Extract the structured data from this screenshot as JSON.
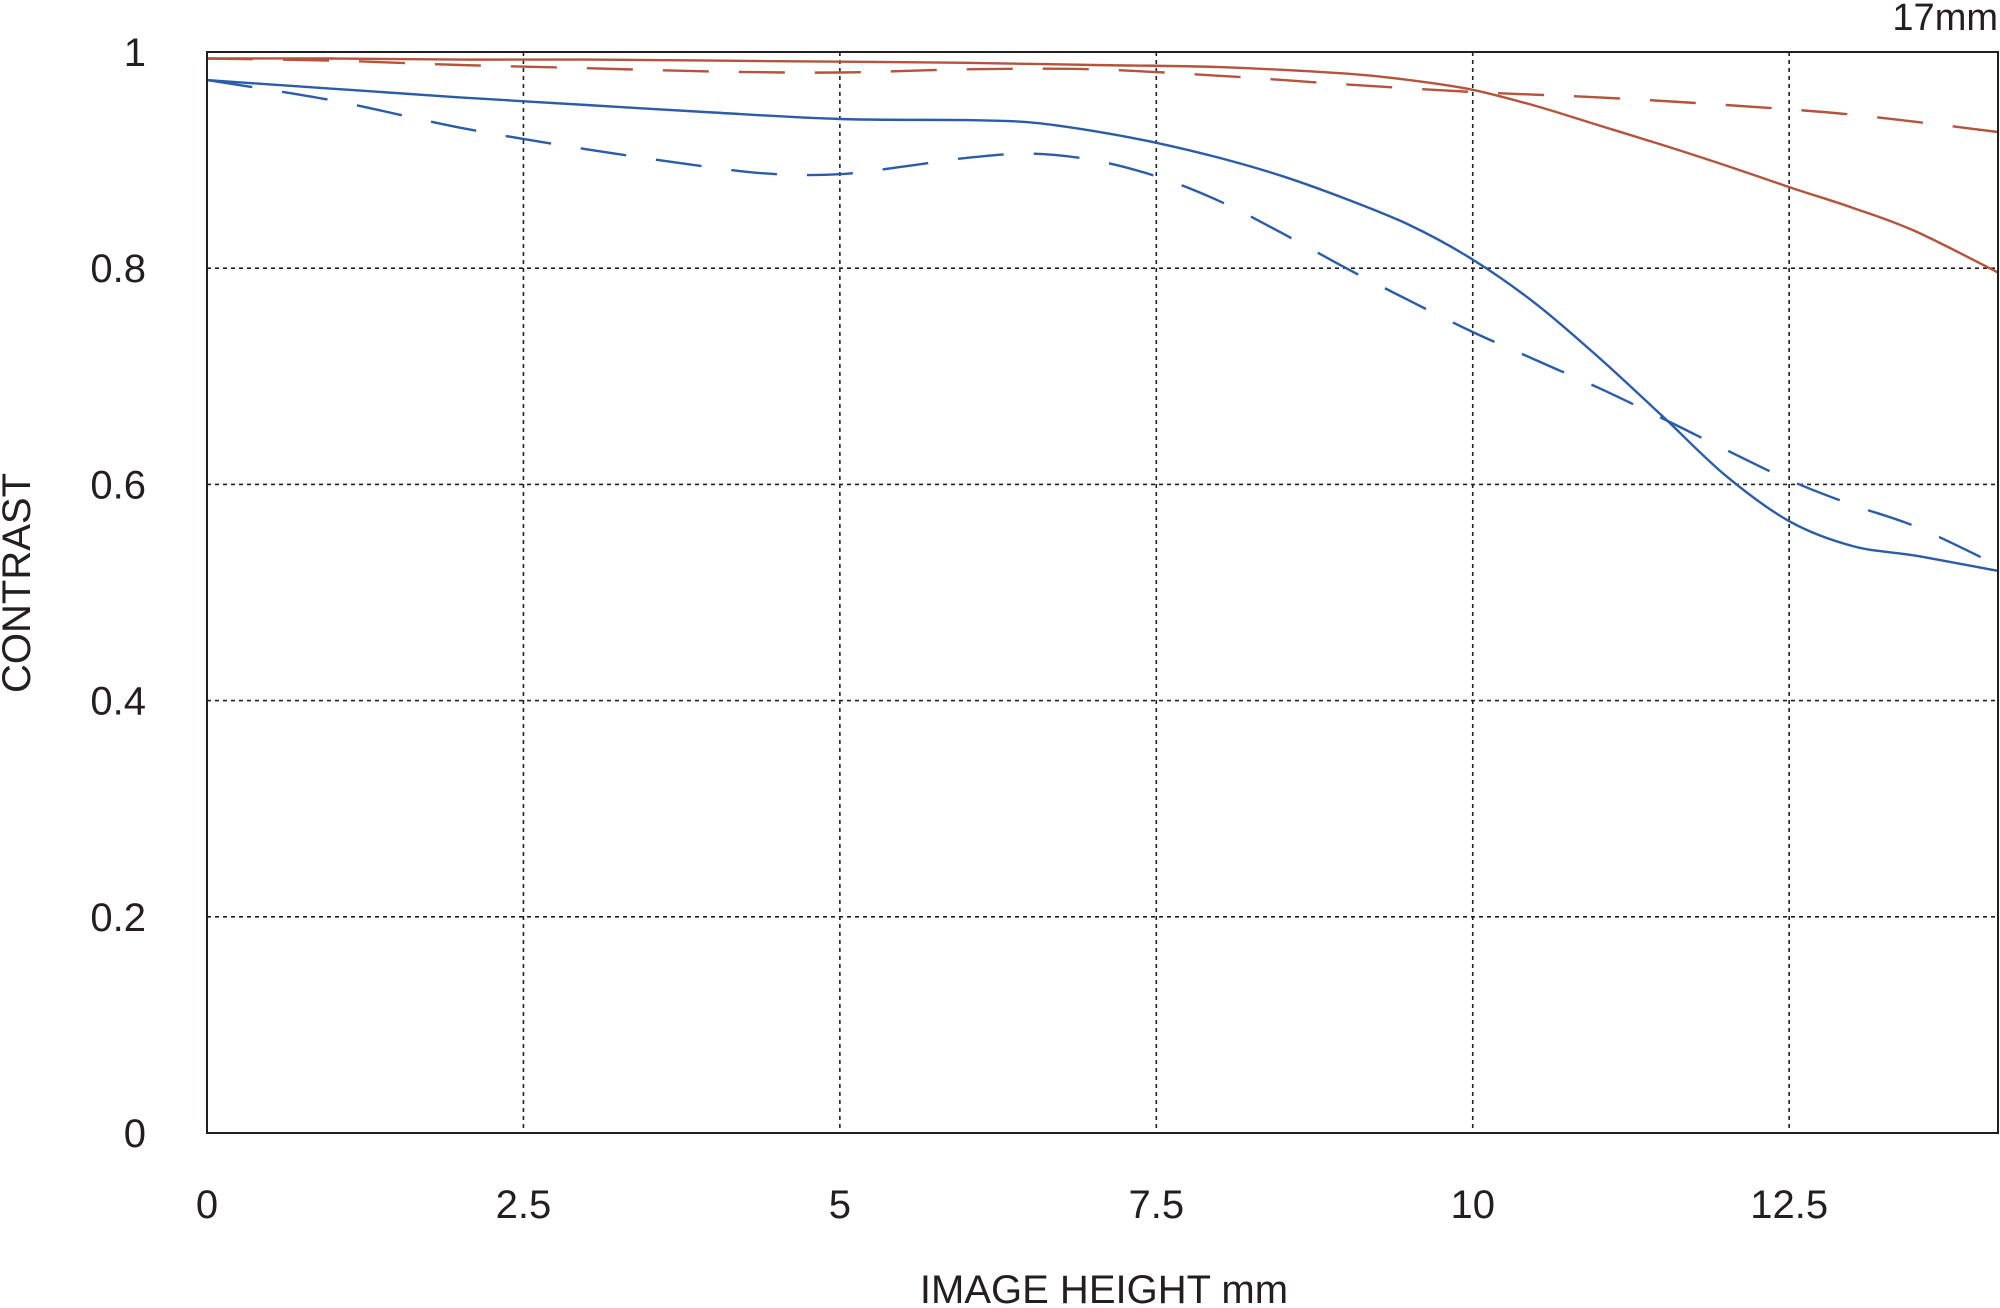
{
  "chart_data": {
    "type": "line",
    "title": "",
    "corner_label": "17mm",
    "xlabel": "IMAGE HEIGHT  mm",
    "ylabel": "CONTRAST",
    "xlim": [
      0,
      14.15
    ],
    "ylim": [
      0,
      1
    ],
    "x_ticks": [
      0,
      2.5,
      5,
      7.5,
      10,
      12.5
    ],
    "x_tick_labels": [
      "0",
      "2.5",
      "5",
      "7.5",
      "10",
      "12.5"
    ],
    "y_ticks": [
      0,
      0.2,
      0.4,
      0.6,
      0.8,
      1
    ],
    "y_tick_labels": [
      "0",
      "0.2",
      "0.4",
      "0.6",
      "0.8",
      "1"
    ],
    "grid": true,
    "legend": "none",
    "series": [
      {
        "color": "#b5533c",
        "style": "solid",
        "x": [
          0,
          1,
          2,
          3,
          4,
          5,
          6,
          7,
          8,
          9,
          9.5,
          10,
          10.5,
          11,
          11.5,
          12,
          12.5,
          13,
          13.5,
          14.15
        ],
        "y": [
          0.994,
          0.994,
          0.993,
          0.993,
          0.992,
          0.991,
          0.99,
          0.988,
          0.986,
          0.98,
          0.974,
          0.965,
          0.95,
          0.932,
          0.914,
          0.895,
          0.875,
          0.856,
          0.834,
          0.796
        ]
      },
      {
        "color": "#b5533c",
        "style": "dashed",
        "x": [
          0,
          1,
          2,
          3,
          4,
          5,
          6,
          7,
          8,
          9,
          10,
          11,
          12,
          13,
          14.15
        ],
        "y": [
          0.994,
          0.992,
          0.988,
          0.985,
          0.982,
          0.981,
          0.984,
          0.984,
          0.978,
          0.97,
          0.963,
          0.958,
          0.951,
          0.942,
          0.926
        ]
      },
      {
        "color": "#2b5ca8",
        "style": "solid",
        "x": [
          0,
          1,
          2,
          3,
          4,
          5,
          6,
          6.5,
          7,
          7.5,
          8,
          8.5,
          9,
          9.5,
          10,
          10.5,
          11,
          11.5,
          12,
          12.5,
          13,
          13.5,
          14.15
        ],
        "y": [
          0.974,
          0.966,
          0.958,
          0.951,
          0.944,
          0.938,
          0.937,
          0.935,
          0.927,
          0.916,
          0.902,
          0.885,
          0.864,
          0.84,
          0.808,
          0.767,
          0.717,
          0.663,
          0.608,
          0.566,
          0.543,
          0.534,
          0.52
        ]
      },
      {
        "color": "#2b5ca8",
        "style": "dashed",
        "x": [
          0,
          1,
          2,
          3,
          4,
          4.5,
          5,
          5.5,
          6,
          6.5,
          7,
          7.5,
          8,
          8.5,
          9,
          9.5,
          10,
          10.5,
          11,
          11.5,
          12,
          12.5,
          13,
          13.5,
          14.15
        ],
        "y": [
          0.974,
          0.955,
          0.93,
          0.91,
          0.893,
          0.887,
          0.887,
          0.894,
          0.902,
          0.906,
          0.9,
          0.885,
          0.862,
          0.832,
          0.8,
          0.77,
          0.741,
          0.715,
          0.689,
          0.661,
          0.632,
          0.604,
          0.581,
          0.561,
          0.525
        ]
      }
    ]
  }
}
